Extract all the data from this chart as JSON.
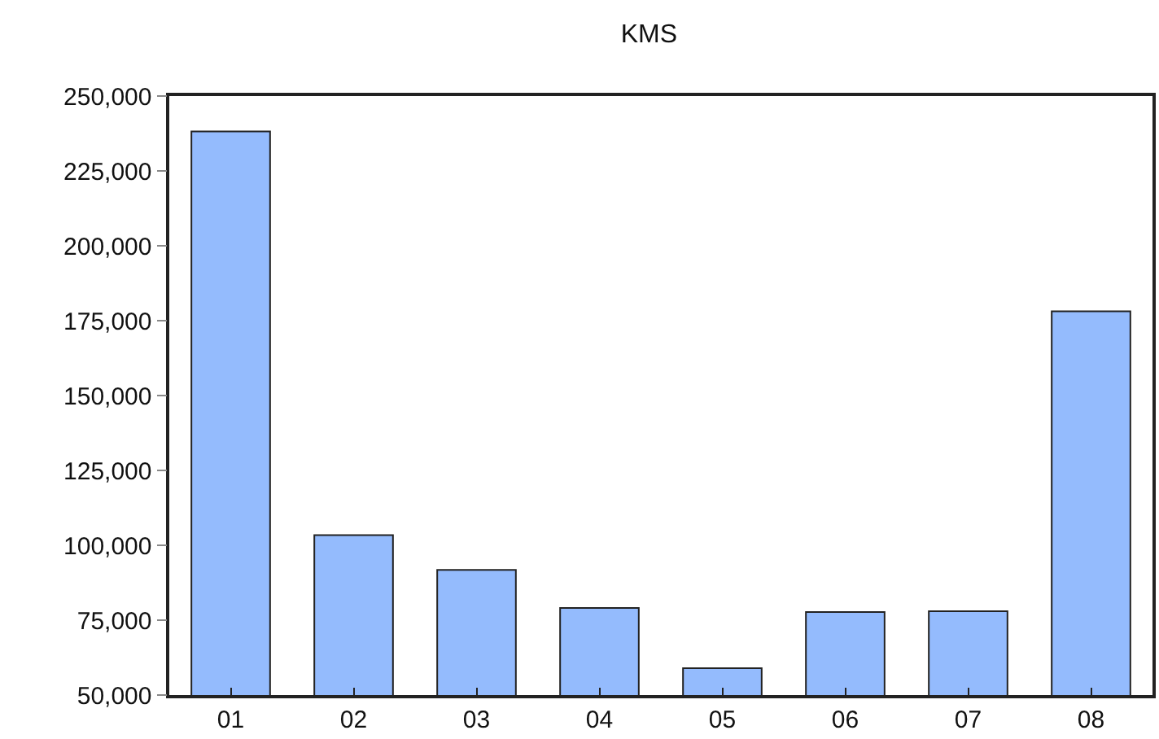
{
  "chart_data": {
    "type": "bar",
    "title": "KMS",
    "categories": [
      "01",
      "02",
      "03",
      "04",
      "05",
      "06",
      "07",
      "08"
    ],
    "values": [
      238200,
      103400,
      91800,
      79100,
      59000,
      77700,
      78000,
      178100
    ],
    "color": "#94bbfd",
    "ylim": [
      50000,
      250000
    ],
    "yticks": [
      {
        "value": 50000,
        "label": "50,000"
      },
      {
        "value": 75000,
        "label": "75,000"
      },
      {
        "value": 100000,
        "label": "100,000"
      },
      {
        "value": 125000,
        "label": "125,000"
      },
      {
        "value": 150000,
        "label": "150,000"
      },
      {
        "value": 175000,
        "label": "175,000"
      },
      {
        "value": 200000,
        "label": "200,000"
      },
      {
        "value": 225000,
        "label": "225,000"
      },
      {
        "value": 250000,
        "label": "250,000"
      }
    ]
  }
}
